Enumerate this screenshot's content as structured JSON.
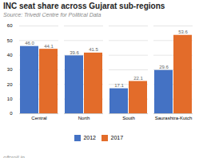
{
  "chart_data": {
    "type": "bar",
    "title": "INC seat share across Gujarat sub-regions",
    "subtitle": "Source: Trivedi Centre for Political Data",
    "annotations": [
      "c⁄fcroll.in"
    ],
    "categories": [
      "Central",
      "North",
      "South",
      "Saurashtra-Kutch"
    ],
    "series": [
      {
        "name": "2012",
        "color": "#4472c4",
        "values": [
          46.0,
          39.6,
          17.1,
          29.6
        ],
        "value_labels": [
          "46.0",
          "39.6",
          "17.1",
          "29.6"
        ]
      },
      {
        "name": "2017",
        "color": "#e36c2a",
        "values": [
          44.1,
          41.5,
          22.1,
          53.6
        ],
        "value_labels": [
          "44.1",
          "41.5",
          "22.1",
          "53.6"
        ]
      }
    ],
    "ylim": [
      0,
      60
    ],
    "yticks": [
      0,
      10,
      20,
      30,
      40,
      50,
      60
    ],
    "grid": true,
    "data_labels": true,
    "legend": "bottom"
  }
}
